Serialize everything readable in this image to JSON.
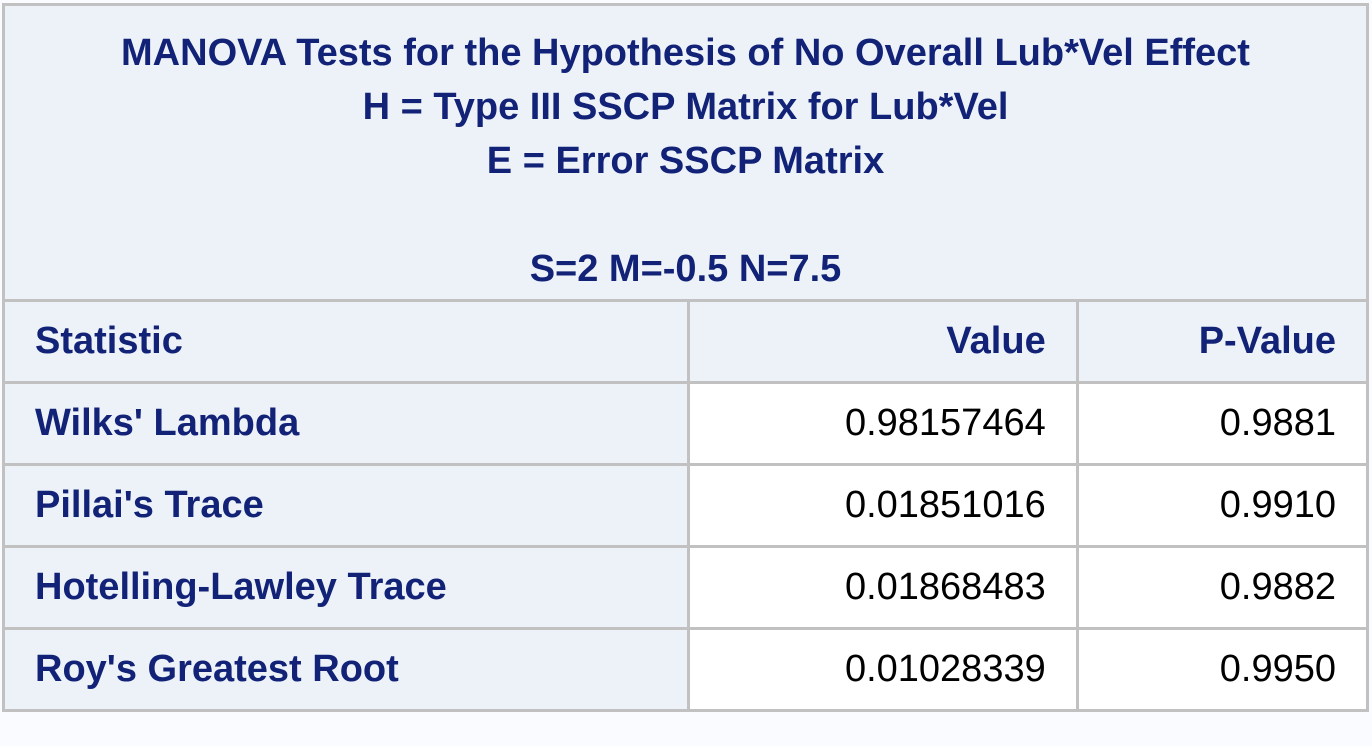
{
  "table": {
    "title_lines": [
      "MANOVA Tests for the Hypothesis of No Overall Lub*Vel Effect",
      "H = Type III SSCP Matrix for Lub*Vel",
      "E = Error SSCP Matrix",
      "S=2 M=-0.5 N=7.5"
    ],
    "headers": {
      "statistic": "Statistic",
      "value": "Value",
      "pvalue": "P-Value"
    },
    "rows": [
      {
        "statistic": "Wilks' Lambda",
        "value": "0.98157464",
        "pvalue": "0.9881"
      },
      {
        "statistic": "Pillai's Trace",
        "value": "0.01851016",
        "pvalue": "0.9910"
      },
      {
        "statistic": "Hotelling-Lawley Trace",
        "value": "0.01868483",
        "pvalue": "0.9882"
      },
      {
        "statistic": "Roy's Greatest Root",
        "value": "0.01028339",
        "pvalue": "0.9950"
      }
    ]
  },
  "colors": {
    "header_bg": "#edf2f9",
    "header_text": "#112277",
    "border": "#c1c1c1",
    "cell_bg": "#ffffff"
  }
}
